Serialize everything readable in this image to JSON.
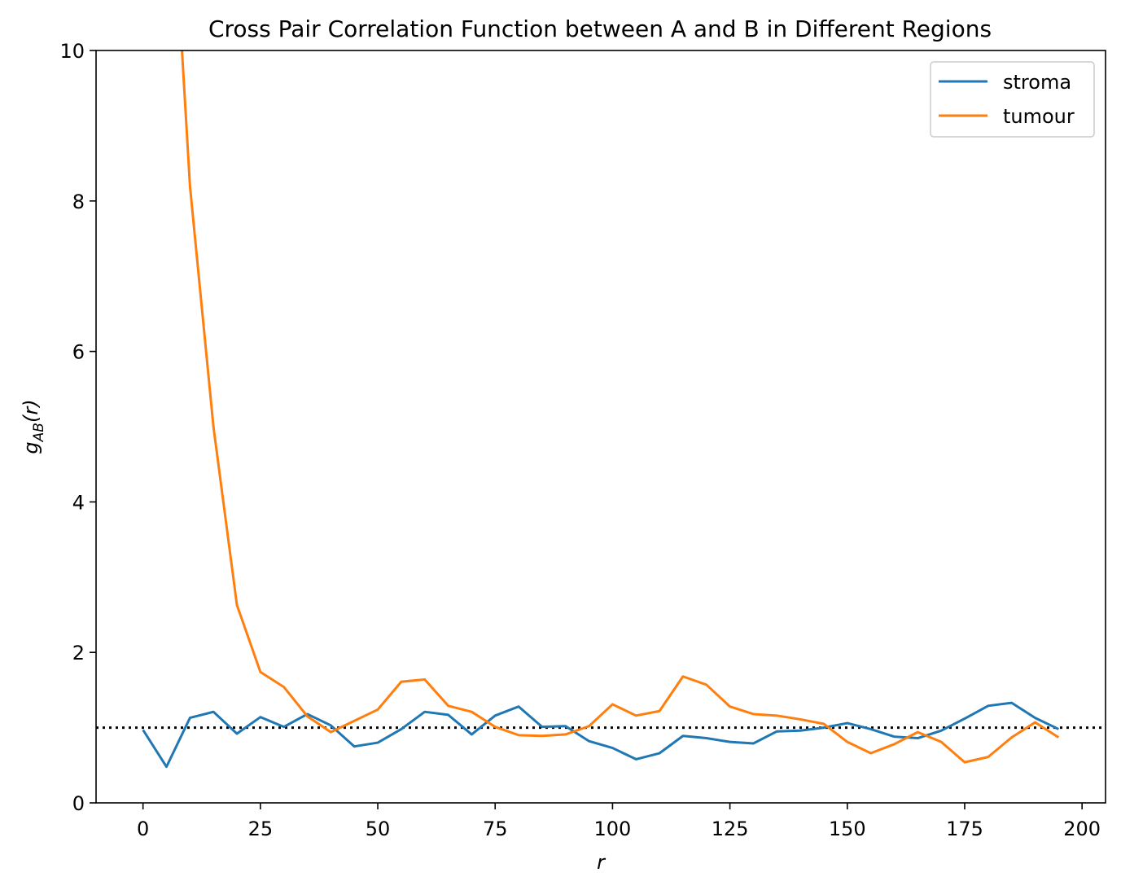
{
  "chart_data": {
    "type": "line",
    "title": "Cross Pair Correlation Function between A and B in Different Regions",
    "xlabel": "r",
    "ylabel_main": "g",
    "ylabel_sub": "AB",
    "ylabel_tail": "(r)",
    "xlim": [
      -10,
      205
    ],
    "ylim": [
      0,
      10
    ],
    "x_ticks": [
      0,
      25,
      50,
      75,
      100,
      125,
      150,
      175,
      200
    ],
    "y_ticks": [
      0,
      2,
      4,
      6,
      8,
      10
    ],
    "grid": false,
    "legend_position": "top-right",
    "reference_line": {
      "y": 1,
      "style": "dotted",
      "color": "#000000"
    },
    "x": [
      0,
      5,
      10,
      15,
      20,
      25,
      30,
      35,
      40,
      45,
      50,
      55,
      60,
      65,
      70,
      75,
      80,
      85,
      90,
      95,
      100,
      105,
      110,
      115,
      120,
      125,
      130,
      135,
      140,
      145,
      150,
      155,
      160,
      165,
      170,
      175,
      180,
      185,
      190,
      195
    ],
    "series": [
      {
        "name": "stroma",
        "color": "#1f77b4",
        "values": [
          0.97,
          0.48,
          1.13,
          1.21,
          0.92,
          1.14,
          1.01,
          1.18,
          1.03,
          0.75,
          0.8,
          0.98,
          1.21,
          1.17,
          0.91,
          1.16,
          1.28,
          1.01,
          1.02,
          0.82,
          0.73,
          0.58,
          0.66,
          0.89,
          0.86,
          0.81,
          0.79,
          0.95,
          0.96,
          1.0,
          1.06,
          0.98,
          0.88,
          0.86,
          0.96,
          1.12,
          1.29,
          1.33,
          1.13,
          0.98
        ]
      },
      {
        "name": "tumour",
        "color": "#ff7f0e",
        "values": [
          null,
          null,
          8.2,
          5.0,
          2.63,
          1.74,
          1.54,
          1.15,
          0.94,
          1.09,
          1.24,
          1.61,
          1.64,
          1.29,
          1.21,
          1.01,
          0.9,
          0.89,
          0.91,
          1.02,
          1.31,
          1.16,
          1.22,
          1.68,
          1.57,
          1.28,
          1.18,
          1.16,
          1.11,
          1.05,
          0.81,
          0.66,
          0.78,
          0.94,
          0.81,
          0.54,
          0.61,
          0.87,
          1.07,
          0.87
        ]
      }
    ],
    "tumour_offscale_entry_x": 8.3
  }
}
